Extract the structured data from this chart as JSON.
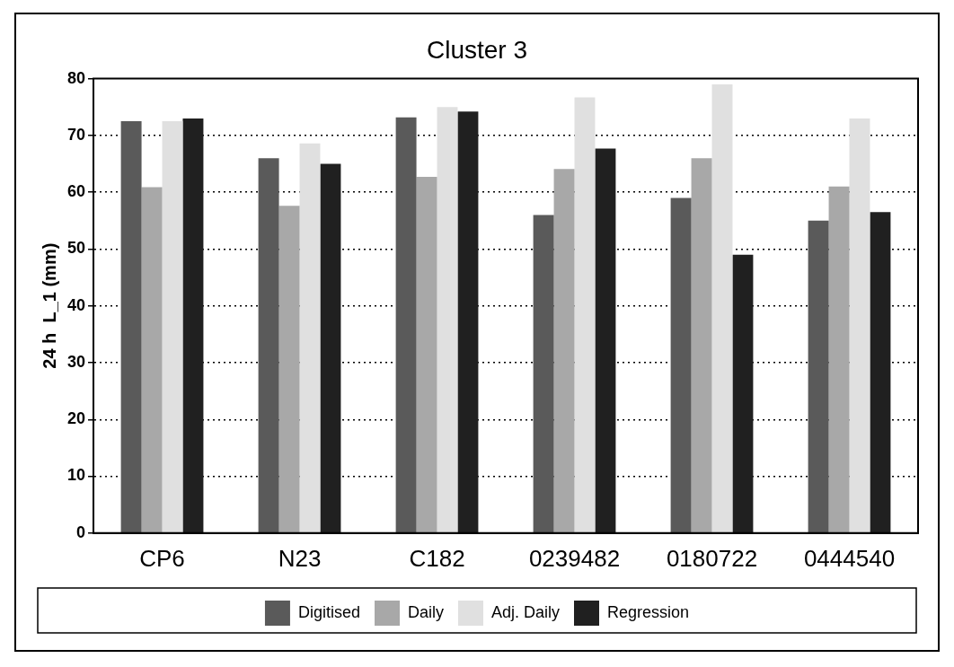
{
  "chart_data": {
    "type": "bar",
    "title": "Cluster 3",
    "ylabel": "24 h  L_1 (mm)",
    "categories": [
      "CP6",
      "N23",
      "C182",
      "0239482",
      "0180722",
      "0444540"
    ],
    "series": [
      {
        "name": "Digitised",
        "color": "#5a5a5a",
        "values": [
          72.5,
          66,
          73.2,
          56,
          59,
          55
        ]
      },
      {
        "name": "Daily",
        "color": "#a8a8a8",
        "values": [
          60.9,
          57.6,
          62.7,
          64.1,
          66,
          61
        ]
      },
      {
        "name": "Adj. Daily",
        "color": "#e0e0e0",
        "values": [
          72.5,
          68.6,
          75,
          76.7,
          79,
          73
        ]
      },
      {
        "name": "Regression",
        "color": "#202020",
        "values": [
          73,
          65,
          74.2,
          67.7,
          49,
          56.5
        ]
      }
    ],
    "ylim": [
      0,
      80
    ],
    "yticks": [
      0,
      10,
      20,
      30,
      40,
      50,
      60,
      70,
      80
    ],
    "grid": "y",
    "legend": "bottom"
  }
}
